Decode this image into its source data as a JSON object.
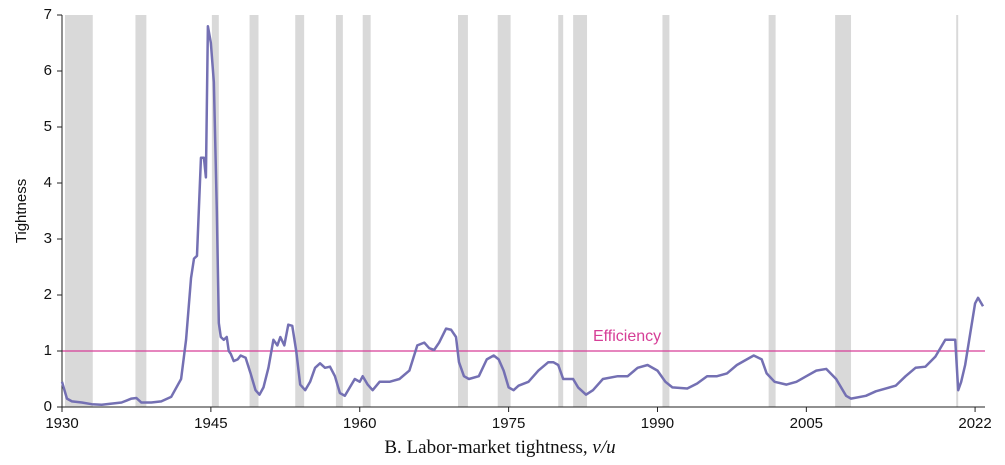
{
  "chart_data": {
    "type": "line",
    "ylabel": "Tightness",
    "caption": "B. Labor-market tightness,",
    "caption_symbol": "v/u",
    "xlim": [
      1930,
      2023
    ],
    "ylim": [
      0,
      7
    ],
    "xticks": [
      1930,
      1945,
      1960,
      1975,
      1990,
      2005,
      2022
    ],
    "yticks": [
      0,
      1,
      2,
      3,
      4,
      5,
      6,
      7
    ],
    "recession_color": "#d9d9d9",
    "recessions": [
      [
        1930.3,
        1933.1
      ],
      [
        1937.4,
        1938.5
      ],
      [
        1945.1,
        1945.8
      ],
      [
        1948.9,
        1949.8
      ],
      [
        1953.5,
        1954.4
      ],
      [
        1957.6,
        1958.3
      ],
      [
        1960.3,
        1961.1
      ],
      [
        1969.9,
        1970.9
      ],
      [
        1973.9,
        1975.2
      ],
      [
        1980.0,
        1980.5
      ],
      [
        1981.5,
        1982.9
      ],
      [
        1990.5,
        1991.2
      ],
      [
        2001.2,
        2001.9
      ],
      [
        2007.9,
        2009.5
      ],
      [
        2020.1,
        2020.3
      ]
    ],
    "reference_line": {
      "value": 1,
      "label": "Efficiency",
      "color": "#d63f97"
    },
    "series": [
      {
        "name": "Tightness",
        "color": "#7470b3",
        "x": [
          1930,
          1930.5,
          1931,
          1932,
          1933,
          1934,
          1935,
          1936,
          1937,
          1937.5,
          1938,
          1939,
          1940,
          1941,
          1942,
          1942.5,
          1943,
          1943.3,
          1943.6,
          1944,
          1944.3,
          1944.5,
          1944.7,
          1945,
          1945.3,
          1945.6,
          1945.8,
          1946,
          1946.3,
          1946.6,
          1946.8,
          1947,
          1947.3,
          1947.7,
          1948,
          1948.5,
          1949,
          1949.5,
          1949.9,
          1950.3,
          1950.8,
          1951.3,
          1951.7,
          1952,
          1952.4,
          1952.8,
          1953.2,
          1953.6,
          1954,
          1954.5,
          1955,
          1955.5,
          1956,
          1956.5,
          1957,
          1957.5,
          1958,
          1958.5,
          1959,
          1959.5,
          1960,
          1960.3,
          1960.8,
          1961.3,
          1962,
          1963,
          1964,
          1965,
          1965.8,
          1966.5,
          1967,
          1967.5,
          1968,
          1968.7,
          1969.2,
          1969.7,
          1970,
          1970.5,
          1971,
          1972,
          1972.8,
          1973.5,
          1974,
          1974.5,
          1975,
          1975.5,
          1976,
          1977,
          1978,
          1979,
          1979.5,
          1980,
          1980.5,
          1981,
          1981.5,
          1982,
          1982.8,
          1983.5,
          1984.5,
          1986,
          1987,
          1988,
          1989,
          1990,
          1990.8,
          1991.5,
          1993,
          1994,
          1995,
          1996,
          1997,
          1998,
          1999,
          1999.7,
          2000.5,
          2001,
          2001.8,
          2003,
          2004,
          2005,
          2006,
          2007,
          2008,
          2009,
          2009.5,
          2011,
          2012,
          2014,
          2015,
          2016,
          2017,
          2018,
          2019,
          2019.5,
          2020,
          2020.3,
          2020.6,
          2021,
          2021.5,
          2022,
          2022.3,
          2022.8
        ],
        "values": [
          0.45,
          0.15,
          0.1,
          0.08,
          0.05,
          0.04,
          0.06,
          0.08,
          0.15,
          0.16,
          0.08,
          0.08,
          0.1,
          0.18,
          0.5,
          1.2,
          2.3,
          2.65,
          2.7,
          4.45,
          4.45,
          4.1,
          6.8,
          6.5,
          5.8,
          3.5,
          1.5,
          1.25,
          1.2,
          1.25,
          1.0,
          0.95,
          0.82,
          0.85,
          0.92,
          0.88,
          0.6,
          0.3,
          0.22,
          0.35,
          0.7,
          1.2,
          1.1,
          1.25,
          1.1,
          1.47,
          1.45,
          1.0,
          0.4,
          0.3,
          0.45,
          0.7,
          0.78,
          0.7,
          0.72,
          0.55,
          0.25,
          0.2,
          0.35,
          0.5,
          0.45,
          0.55,
          0.4,
          0.3,
          0.45,
          0.45,
          0.5,
          0.65,
          1.1,
          1.15,
          1.05,
          1.02,
          1.15,
          1.4,
          1.38,
          1.25,
          0.8,
          0.55,
          0.5,
          0.55,
          0.85,
          0.92,
          0.85,
          0.65,
          0.35,
          0.3,
          0.38,
          0.45,
          0.65,
          0.8,
          0.8,
          0.75,
          0.5,
          0.5,
          0.5,
          0.35,
          0.22,
          0.3,
          0.5,
          0.55,
          0.55,
          0.7,
          0.75,
          0.65,
          0.45,
          0.35,
          0.33,
          0.42,
          0.55,
          0.55,
          0.6,
          0.75,
          0.85,
          0.92,
          0.85,
          0.6,
          0.45,
          0.4,
          0.45,
          0.55,
          0.65,
          0.68,
          0.5,
          0.2,
          0.15,
          0.2,
          0.28,
          0.38,
          0.55,
          0.7,
          0.72,
          0.9,
          1.2,
          1.2,
          1.2,
          0.3,
          0.45,
          0.75,
          1.3,
          1.85,
          1.95,
          1.8
        ]
      }
    ]
  }
}
